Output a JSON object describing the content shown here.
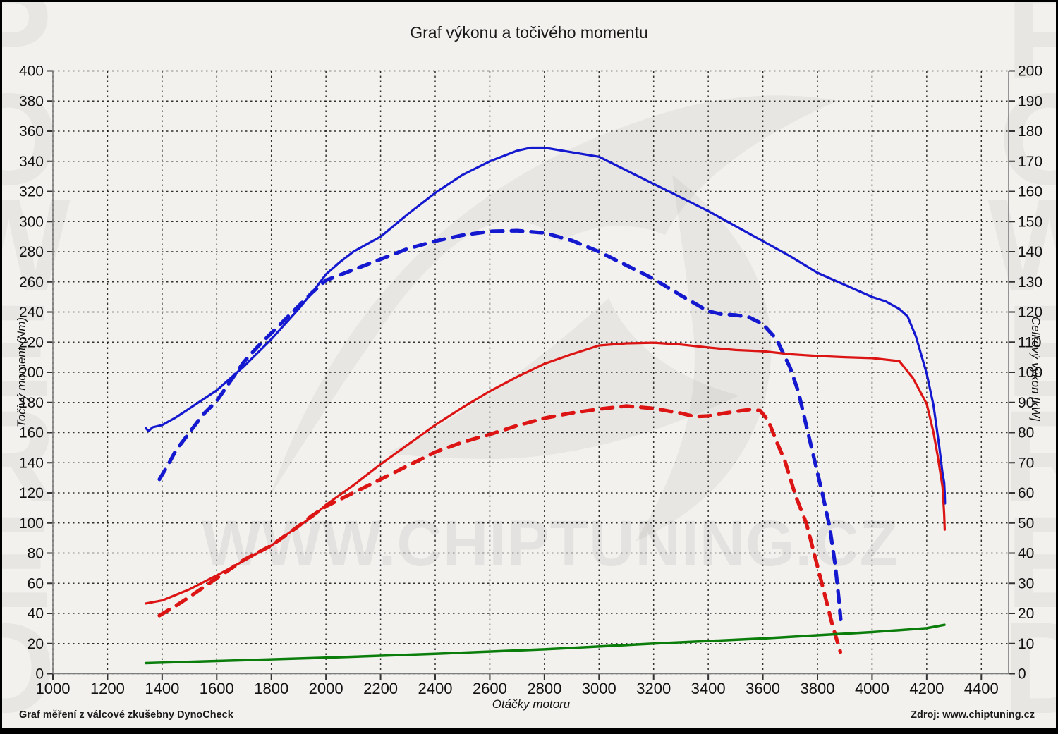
{
  "title": "Graf výkonu a točivého momentu",
  "footer": {
    "left": "Graf měření z válcové zkušebny DynoCheck",
    "right": "Zdroj: www.chiptuning.cz"
  },
  "watermarks": {
    "center_text": "WWW.CHIPTUNING.CZ",
    "side_text": "POWERED"
  },
  "colors": {
    "blue": "#1418cf",
    "red": "#dc1414",
    "green": "#0b7d0b",
    "background": "#f2f1ee",
    "grid": "#000000",
    "frame": "#7d7d7d",
    "watermark": "rgba(0,0,0,0.045)"
  },
  "axes": {
    "x": {
      "label": "Otáčky motoru",
      "min": 1000,
      "max": 4500,
      "tick_step": 200,
      "ticks": [
        1000,
        1200,
        1400,
        1600,
        1800,
        2000,
        2200,
        2400,
        2600,
        2800,
        3000,
        3200,
        3400,
        3600,
        3800,
        4000,
        4200,
        4400
      ]
    },
    "y_left": {
      "label": "Točivý moment (Nm)",
      "min": 0,
      "max": 400,
      "tick_step": 20,
      "ticks": [
        0,
        20,
        40,
        60,
        80,
        100,
        120,
        140,
        160,
        180,
        200,
        220,
        240,
        260,
        280,
        300,
        320,
        340,
        360,
        380,
        400
      ]
    },
    "y_right": {
      "label": "Celkový výkon [kW]",
      "min": 0,
      "max": 200,
      "tick_step": 10,
      "ticks": [
        0,
        10,
        20,
        30,
        40,
        50,
        60,
        70,
        80,
        90,
        100,
        110,
        120,
        130,
        140,
        150,
        160,
        170,
        180,
        190,
        200
      ]
    }
  },
  "chart_data": {
    "type": "line",
    "title": "Graf výkonu a točivého momentu",
    "xlabel": "Otáčky motoru",
    "ylabel_left": "Točivý moment (Nm)",
    "ylabel_right": "Celkový výkon [kW]",
    "xlim": [
      1000,
      4500
    ],
    "ylim_left": [
      0,
      400
    ],
    "ylim_right": [
      0,
      200
    ],
    "grid": true,
    "legend": "none",
    "series": [
      {
        "name": "torque_tuned",
        "axis": "torque",
        "unit": "Nm",
        "color": "#1418cf",
        "style": "solid",
        "width": 3.2,
        "points": [
          [
            1340,
            163
          ],
          [
            1350,
            161
          ],
          [
            1365,
            163.5
          ],
          [
            1400,
            165
          ],
          [
            1450,
            170
          ],
          [
            1500,
            176
          ],
          [
            1550,
            182
          ],
          [
            1600,
            188
          ],
          [
            1650,
            196
          ],
          [
            1700,
            204
          ],
          [
            1750,
            213
          ],
          [
            1800,
            222
          ],
          [
            1850,
            232
          ],
          [
            1900,
            242
          ],
          [
            1950,
            253
          ],
          [
            2000,
            265
          ],
          [
            2050,
            273
          ],
          [
            2100,
            280
          ],
          [
            2150,
            285
          ],
          [
            2200,
            290
          ],
          [
            2300,
            305
          ],
          [
            2400,
            319
          ],
          [
            2500,
            331
          ],
          [
            2600,
            340
          ],
          [
            2700,
            347
          ],
          [
            2750,
            349
          ],
          [
            2800,
            349
          ],
          [
            2900,
            346
          ],
          [
            3000,
            343
          ],
          [
            3100,
            334
          ],
          [
            3200,
            325
          ],
          [
            3300,
            316
          ],
          [
            3400,
            307
          ],
          [
            3500,
            297
          ],
          [
            3600,
            287
          ],
          [
            3700,
            277
          ],
          [
            3800,
            266
          ],
          [
            3900,
            258
          ],
          [
            4000,
            250
          ],
          [
            4050,
            247
          ],
          [
            4100,
            242
          ],
          [
            4130,
            237
          ],
          [
            4160,
            224
          ],
          [
            4200,
            199
          ],
          [
            4225,
            178
          ],
          [
            4245,
            152
          ],
          [
            4258,
            133
          ],
          [
            4264,
            127
          ],
          [
            4266,
            120
          ],
          [
            4267,
            113
          ]
        ]
      },
      {
        "name": "torque_stock",
        "axis": "torque",
        "unit": "Nm",
        "color": "#1418cf",
        "style": "dashed",
        "width": 5.2,
        "points": [
          [
            1390,
            129
          ],
          [
            1420,
            138
          ],
          [
            1450,
            148
          ],
          [
            1500,
            160
          ],
          [
            1550,
            172
          ],
          [
            1600,
            181
          ],
          [
            1650,
            194
          ],
          [
            1700,
            207
          ],
          [
            1750,
            217
          ],
          [
            1800,
            226
          ],
          [
            1850,
            235
          ],
          [
            1900,
            244
          ],
          [
            1950,
            253
          ],
          [
            2000,
            261
          ],
          [
            2100,
            268
          ],
          [
            2200,
            275
          ],
          [
            2300,
            282
          ],
          [
            2400,
            287
          ],
          [
            2500,
            291
          ],
          [
            2600,
            293.5
          ],
          [
            2700,
            294
          ],
          [
            2800,
            292.5
          ],
          [
            2900,
            287.5
          ],
          [
            3000,
            280
          ],
          [
            3100,
            271
          ],
          [
            3200,
            262
          ],
          [
            3300,
            251
          ],
          [
            3400,
            240.5
          ],
          [
            3450,
            238.5
          ],
          [
            3500,
            238
          ],
          [
            3550,
            236.5
          ],
          [
            3600,
            232
          ],
          [
            3650,
            222
          ],
          [
            3700,
            203
          ],
          [
            3730,
            187
          ],
          [
            3760,
            164
          ],
          [
            3790,
            141
          ],
          [
            3820,
            118
          ],
          [
            3845,
            97
          ],
          [
            3865,
            72
          ],
          [
            3878,
            50
          ],
          [
            3885,
            36
          ]
        ]
      },
      {
        "name": "power_tuned",
        "axis": "power",
        "unit": "kW",
        "color": "#dc1414",
        "style": "solid",
        "width": 3.2,
        "points": [
          [
            1340,
            23.3
          ],
          [
            1400,
            24.3
          ],
          [
            1500,
            28
          ],
          [
            1600,
            32.6
          ],
          [
            1700,
            37.5
          ],
          [
            1800,
            42.5
          ],
          [
            1900,
            49
          ],
          [
            1950,
            52
          ],
          [
            2000,
            56
          ],
          [
            2100,
            62.5
          ],
          [
            2200,
            69.5
          ],
          [
            2300,
            76
          ],
          [
            2400,
            82.5
          ],
          [
            2500,
            88.3
          ],
          [
            2600,
            93.7
          ],
          [
            2700,
            98.5
          ],
          [
            2800,
            102.8
          ],
          [
            2900,
            106
          ],
          [
            3000,
            108.9
          ],
          [
            3100,
            109.6
          ],
          [
            3200,
            109.8
          ],
          [
            3300,
            109.2
          ],
          [
            3400,
            108.2
          ],
          [
            3500,
            107.4
          ],
          [
            3600,
            107
          ],
          [
            3700,
            106
          ],
          [
            3800,
            105.4
          ],
          [
            3900,
            105
          ],
          [
            4000,
            104.7
          ],
          [
            4100,
            103.7
          ],
          [
            4150,
            98
          ],
          [
            4200,
            89.5
          ],
          [
            4225,
            80
          ],
          [
            4240,
            72.4
          ],
          [
            4258,
            62
          ],
          [
            4264,
            53
          ],
          [
            4266,
            47.8
          ]
        ]
      },
      {
        "name": "power_stock",
        "axis": "power",
        "unit": "kW",
        "color": "#dc1414",
        "style": "dashed",
        "width": 5.2,
        "points": [
          [
            1390,
            19.3
          ],
          [
            1450,
            22.5
          ],
          [
            1500,
            25.5
          ],
          [
            1600,
            31.7
          ],
          [
            1700,
            37.8
          ],
          [
            1800,
            42.5
          ],
          [
            1900,
            49
          ],
          [
            1950,
            52.5
          ],
          [
            2000,
            55.5
          ],
          [
            2100,
            60
          ],
          [
            2200,
            64.5
          ],
          [
            2300,
            69
          ],
          [
            2400,
            73.5
          ],
          [
            2500,
            76.8
          ],
          [
            2600,
            79.4
          ],
          [
            2700,
            82.3
          ],
          [
            2800,
            84.8
          ],
          [
            2900,
            86.5
          ],
          [
            3000,
            87.8
          ],
          [
            3100,
            88.8
          ],
          [
            3200,
            88
          ],
          [
            3300,
            86.4
          ],
          [
            3350,
            85.3
          ],
          [
            3400,
            85.5
          ],
          [
            3450,
            86.3
          ],
          [
            3500,
            87
          ],
          [
            3550,
            87.6
          ],
          [
            3590,
            87.3
          ],
          [
            3620,
            84
          ],
          [
            3650,
            77
          ],
          [
            3680,
            70.8
          ],
          [
            3720,
            59
          ],
          [
            3760,
            49.7
          ],
          [
            3800,
            35.6
          ],
          [
            3830,
            25
          ],
          [
            3855,
            16
          ],
          [
            3875,
            10
          ],
          [
            3884,
            7.2
          ]
        ]
      },
      {
        "name": "losses",
        "axis": "power",
        "unit": "kW",
        "color": "#0b7d0b",
        "style": "solid",
        "width": 3.5,
        "points": [
          [
            1340,
            3.5
          ],
          [
            1600,
            4.2
          ],
          [
            2000,
            5.3
          ],
          [
            2400,
            6.6
          ],
          [
            2800,
            8.1
          ],
          [
            3200,
            10
          ],
          [
            3600,
            11.7
          ],
          [
            4000,
            13.8
          ],
          [
            4200,
            15.1
          ],
          [
            4265,
            16.2
          ]
        ]
      }
    ]
  }
}
